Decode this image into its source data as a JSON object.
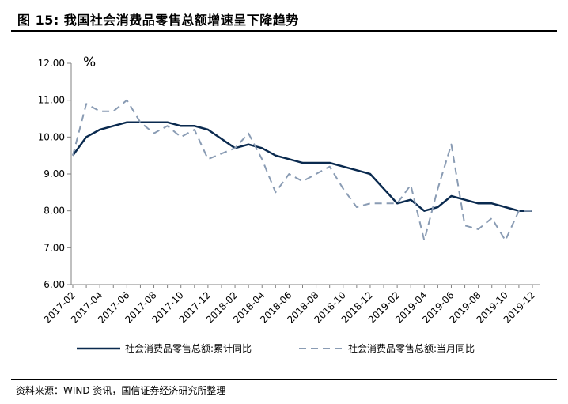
{
  "header": {
    "title": "图 15:  我国社会消费品零售总额增速呈下降趋势"
  },
  "footer": {
    "source": "资料来源：WIND 资讯，国信证券经济研究所整理"
  },
  "colors": {
    "cumulative": "#0a2a4f",
    "monthly": "#8a9cb4",
    "axis": "#808080"
  },
  "chart_data": {
    "type": "line",
    "unit_label": "%",
    "ylim": [
      6.0,
      12.0
    ],
    "y_ticks": [
      "6.00",
      "7.00",
      "8.00",
      "9.00",
      "10.00",
      "11.00",
      "12.00"
    ],
    "x_ticks": [
      "2017-02",
      "2017-04",
      "2017-06",
      "2017-08",
      "2017-10",
      "2017-12",
      "2018-02",
      "2018-04",
      "2018-06",
      "2018-08",
      "2018-10",
      "2018-12",
      "2019-02",
      "2019-04",
      "2019-06",
      "2019-08",
      "2019-10",
      "2019-12"
    ],
    "x": [
      "2017-02",
      "2017-03",
      "2017-04",
      "2017-05",
      "2017-06",
      "2017-07",
      "2017-08",
      "2017-09",
      "2017-10",
      "2017-11",
      "2017-12",
      "2018-01",
      "2018-02",
      "2018-03",
      "2018-04",
      "2018-05",
      "2018-06",
      "2018-07",
      "2018-08",
      "2018-09",
      "2018-10",
      "2018-11",
      "2018-12",
      "2019-01",
      "2019-02",
      "2019-03",
      "2019-04",
      "2019-05",
      "2019-06",
      "2019-07",
      "2019-08",
      "2019-09",
      "2019-10",
      "2019-11",
      "2019-12"
    ],
    "series": [
      {
        "name": "社会消费品零售总额:累计同比",
        "style": "solid",
        "values": [
          9.5,
          10.0,
          10.2,
          10.3,
          10.4,
          10.4,
          10.4,
          10.4,
          10.3,
          10.3,
          10.2,
          null,
          9.7,
          9.8,
          9.7,
          9.5,
          9.4,
          9.3,
          9.3,
          9.3,
          9.2,
          9.1,
          9.0,
          null,
          8.2,
          8.3,
          8.0,
          8.1,
          8.4,
          8.3,
          8.2,
          8.2,
          8.1,
          8.0,
          8.0
        ]
      },
      {
        "name": "社会消费品零售总额:当月同比",
        "style": "dashed",
        "values": [
          9.5,
          10.9,
          10.7,
          10.7,
          11.0,
          10.4,
          10.1,
          10.3,
          10.0,
          10.2,
          9.4,
          null,
          9.7,
          10.1,
          9.4,
          8.5,
          9.0,
          8.8,
          9.0,
          9.2,
          8.6,
          8.1,
          8.2,
          null,
          8.2,
          8.7,
          7.2,
          8.6,
          9.8,
          7.6,
          7.5,
          7.8,
          7.2,
          8.0,
          8.0
        ]
      }
    ]
  }
}
